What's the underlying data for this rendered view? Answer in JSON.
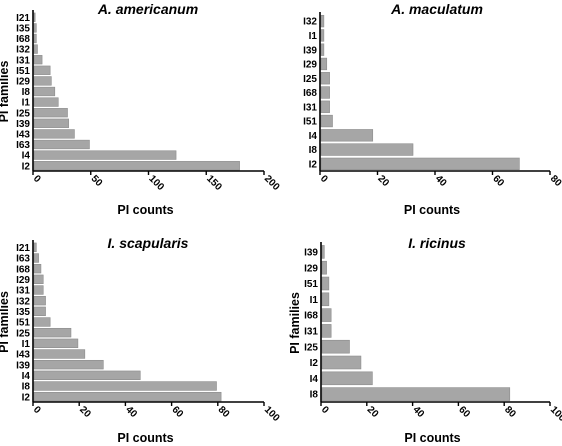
{
  "chart_data": [
    {
      "type": "bar",
      "orientation": "horizontal",
      "title": "A. americanum",
      "xlabel": "PI counts",
      "ylabel": "PI families",
      "xlim": [
        0,
        200
      ],
      "xticks": [
        "0",
        "50",
        "100",
        "150",
        "200"
      ],
      "categories": [
        "I21",
        "I35",
        "I68",
        "I32",
        "I31",
        "I51",
        "I29",
        "I8",
        "I1",
        "I25",
        "I39",
        "I43",
        "I63",
        "I4",
        "I2"
      ],
      "values": [
        1,
        2,
        2,
        3,
        7,
        14,
        15,
        18,
        21,
        29,
        30,
        35,
        48,
        123,
        178
      ]
    },
    {
      "type": "bar",
      "orientation": "horizontal",
      "title": "A. maculatum",
      "xlabel": "PI counts",
      "ylabel": "",
      "xlim": [
        0,
        80
      ],
      "xticks": [
        "0",
        "20",
        "40",
        "60",
        "80"
      ],
      "categories": [
        "I32",
        "I1",
        "I39",
        "I29",
        "I25",
        "I68",
        "I31",
        "I51",
        "I4",
        "I8",
        "I2"
      ],
      "values": [
        1,
        1,
        1,
        2,
        3,
        3,
        3,
        4,
        18,
        32,
        69
      ]
    },
    {
      "type": "bar",
      "orientation": "horizontal",
      "title": "I. scapularis",
      "xlabel": "PI counts",
      "ylabel": "PI families",
      "xlim": [
        0,
        100
      ],
      "xticks": [
        "0",
        "20",
        "40",
        "60",
        "80",
        "100"
      ],
      "categories": [
        "I21",
        "I63",
        "I68",
        "I29",
        "I31",
        "I32",
        "I35",
        "I51",
        "I25",
        "I1",
        "I43",
        "I39",
        "I4",
        "I8",
        "I2"
      ],
      "values": [
        1,
        2,
        3,
        4,
        4,
        5,
        5,
        7,
        16,
        19,
        22,
        30,
        46,
        79,
        81
      ]
    },
    {
      "type": "bar",
      "orientation": "horizontal",
      "title": "I. ricinus",
      "xlabel": "PI counts",
      "ylabel": "PI families",
      "xlim": [
        0,
        100
      ],
      "xticks": [
        "0",
        "20",
        "40",
        "60",
        "80",
        "100"
      ],
      "categories": [
        "I39",
        "I29",
        "I51",
        "I1",
        "I68",
        "I31",
        "I25",
        "I2",
        "I4",
        "I8"
      ],
      "values": [
        1,
        2,
        3,
        3,
        4,
        4,
        12,
        17,
        22,
        82
      ]
    }
  ]
}
